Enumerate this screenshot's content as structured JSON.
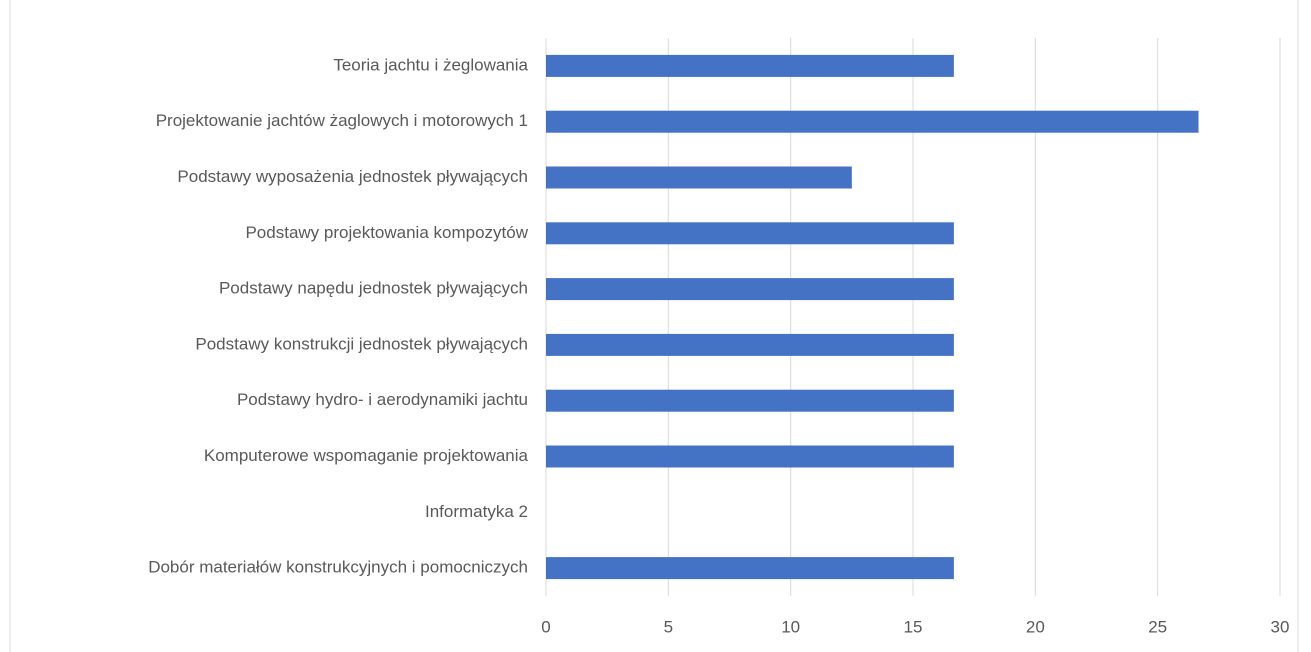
{
  "chart_data": {
    "type": "barh",
    "categories": [
      "Teoria jachtu i żeglowania",
      "Projektowanie jachtów żaglowych i motorowych 1",
      "Podstawy wyposażenia jednostek pływających",
      "Podstawy projektowania kompozytów",
      "Podstawy napędu jednostek pływających",
      "Podstawy konstrukcji jednostek pływających",
      "Podstawy hydro- i aerodynamiki jachtu",
      "Komputerowe wspomaganie projektowania",
      "Informatyka 2",
      "Dobór materiałów konstrukcyjnych i pomocniczych"
    ],
    "values": [
      16.67,
      26.67,
      12.5,
      16.67,
      16.67,
      16.67,
      16.67,
      16.67,
      0,
      16.67
    ],
    "color": "#4472c4",
    "xlim": [
      0,
      30
    ],
    "xticks": [
      0,
      5,
      10,
      15,
      20,
      25,
      30
    ],
    "grid": true
  }
}
